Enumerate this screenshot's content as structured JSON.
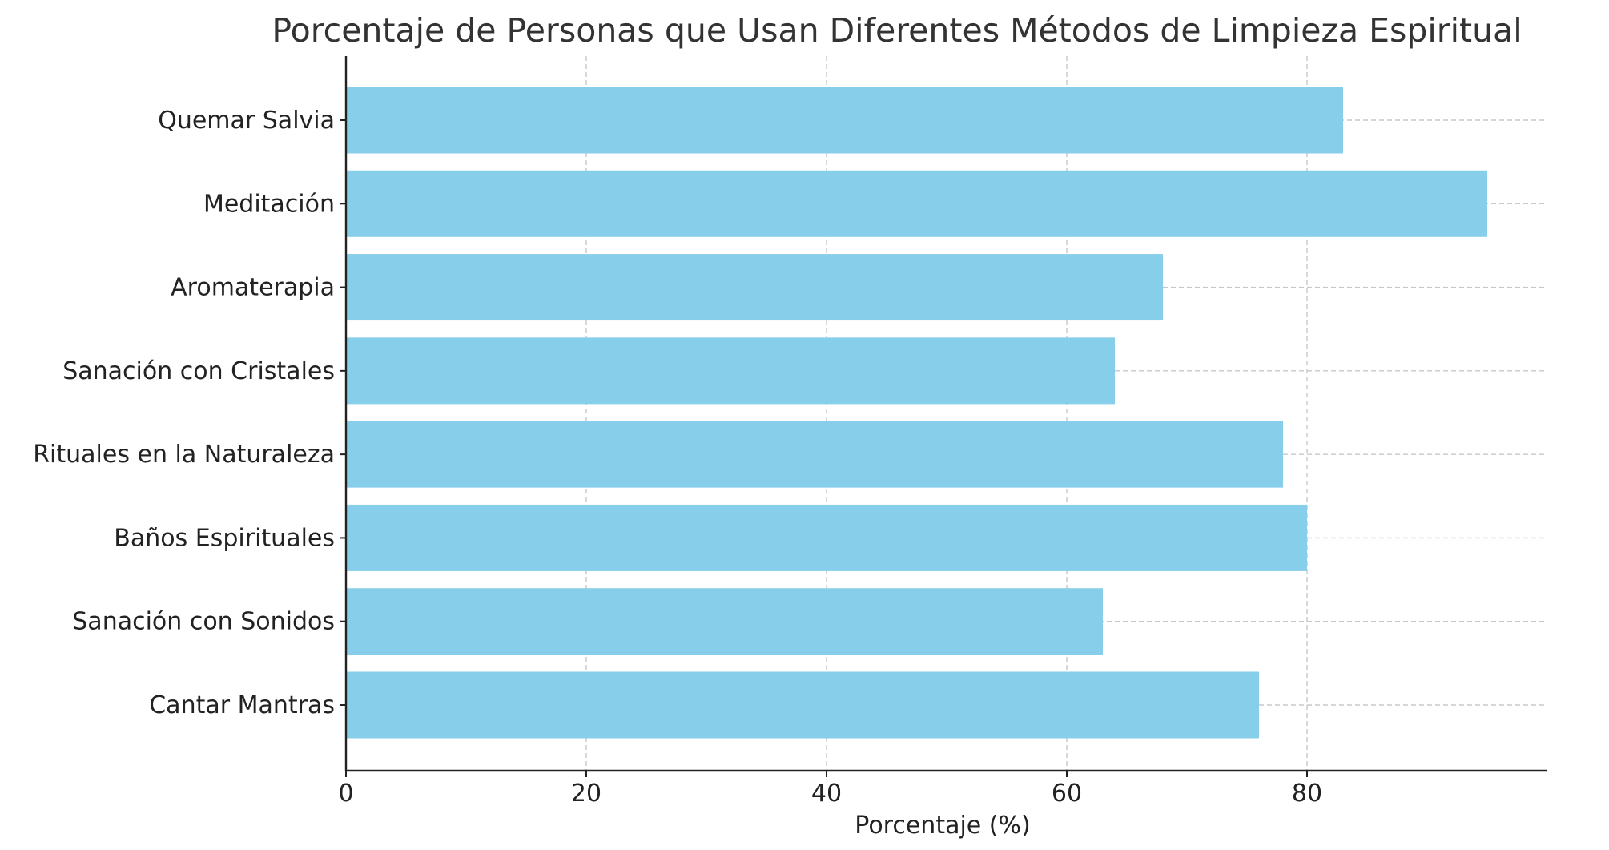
{
  "chart_data": {
    "type": "bar",
    "orientation": "horizontal",
    "title": "Porcentaje de Personas que Usan Diferentes Métodos de Limpieza Espiritual",
    "xlabel": "Porcentaje (%)",
    "ylabel": "",
    "categories": [
      "Quemar Salvia",
      "Meditación",
      "Aromaterapia",
      "Sanación con Cristales",
      "Rituales en la Naturaleza",
      "Baños Espirituales",
      "Sanación con Sonidos",
      "Cantar Mantras"
    ],
    "values": [
      83,
      95,
      68,
      64,
      78,
      80,
      63,
      76
    ],
    "xlim": [
      0,
      100
    ],
    "xticks": [
      "0",
      "20",
      "40",
      "60",
      "80"
    ],
    "bar_color": "#87ceeb",
    "grid": true,
    "grid_style": "dashed",
    "legend": "none"
  }
}
